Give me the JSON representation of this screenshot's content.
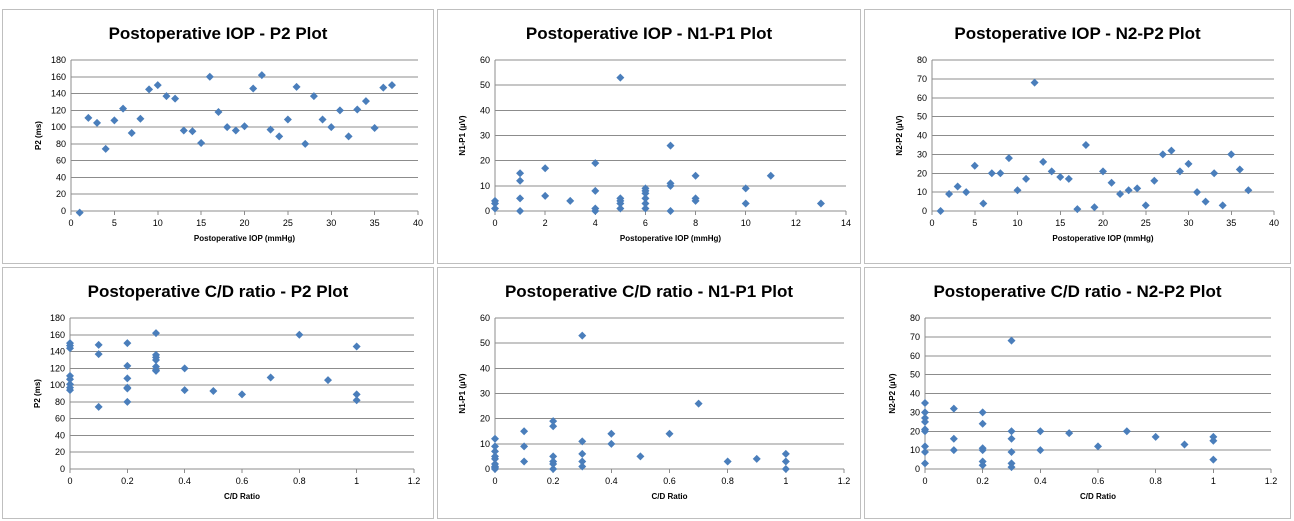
{
  "marker_color": "#4a7ebb",
  "grid_color": "#8c8c8c",
  "chart_data": [
    {
      "type": "scatter",
      "title": "Postoperative IOP - P2 Plot",
      "xlabel": "Postoperative IOP (mmHg)",
      "ylabel": "P2 (ms)",
      "xlim": [
        0,
        40
      ],
      "ylim": [
        0,
        180
      ],
      "xticks": [
        0,
        5,
        10,
        15,
        20,
        25,
        30,
        35,
        40
      ],
      "yticks": [
        0,
        20,
        40,
        60,
        80,
        100,
        120,
        140,
        160,
        180
      ],
      "grid": true,
      "legend": "none",
      "x": [
        1,
        2,
        3,
        4,
        5,
        6,
        7,
        8,
        9,
        10,
        11,
        12,
        13,
        14,
        15,
        16,
        17,
        18,
        19,
        20,
        21,
        22,
        23,
        24,
        25,
        26,
        27,
        28,
        29,
        30,
        31,
        32,
        33,
        34,
        35,
        36,
        37
      ],
      "y": [
        -2,
        111,
        105,
        74,
        108,
        122,
        93,
        110,
        145,
        150,
        137,
        134,
        96,
        95,
        81,
        160,
        118,
        100,
        96,
        101,
        146,
        162,
        97,
        89,
        109,
        148,
        80,
        137,
        109,
        100,
        120,
        89,
        121,
        131,
        99,
        147,
        150
      ]
    },
    {
      "type": "scatter",
      "title": "Postoperative IOP - N1-P1 Plot",
      "xlabel": "Postoperative IOP (mmHg)",
      "ylabel": "N1-P1 (µV)",
      "xlim": [
        0,
        14
      ],
      "ylim": [
        0,
        60
      ],
      "xticks": [
        0,
        2,
        4,
        6,
        8,
        10,
        12,
        14
      ],
      "yticks": [
        0,
        10,
        20,
        30,
        40,
        50,
        60
      ],
      "grid": true,
      "legend": "none",
      "x": [
        0,
        0,
        0,
        1,
        1,
        1,
        1,
        2,
        2,
        3,
        4,
        4,
        4,
        4,
        5,
        5,
        5,
        5,
        5,
        6,
        6,
        6,
        6,
        6,
        6,
        7,
        7,
        7,
        7,
        8,
        8,
        8,
        10,
        10,
        11,
        13
      ],
      "y": [
        1,
        3,
        4,
        15,
        12,
        5,
        0,
        17,
        6,
        4,
        19,
        8,
        1,
        0,
        53,
        5,
        3,
        1,
        4,
        9,
        7,
        5,
        3,
        1,
        8,
        26,
        11,
        10,
        0,
        14,
        5,
        4,
        9,
        3,
        14,
        3
      ]
    },
    {
      "type": "scatter",
      "title": "Postoperative IOP - N2-P2 Plot",
      "xlabel": "Postoperative IOP (mmHg)",
      "ylabel": "N2-P2 (µV)",
      "xlim": [
        0,
        40
      ],
      "ylim": [
        0,
        80
      ],
      "xticks": [
        0,
        5,
        10,
        15,
        20,
        25,
        30,
        35,
        40
      ],
      "yticks": [
        0,
        10,
        20,
        30,
        40,
        50,
        60,
        70,
        80
      ],
      "grid": true,
      "legend": "none",
      "x": [
        1,
        2,
        3,
        4,
        5,
        6,
        7,
        8,
        9,
        10,
        11,
        12,
        13,
        14,
        15,
        16,
        17,
        18,
        19,
        20,
        21,
        22,
        23,
        24,
        25,
        26,
        27,
        28,
        29,
        30,
        31,
        32,
        33,
        34,
        35,
        36,
        37
      ],
      "y": [
        0,
        9,
        13,
        10,
        24,
        4,
        20,
        20,
        28,
        11,
        17,
        68,
        26,
        21,
        18,
        17,
        1,
        35,
        2,
        21,
        15,
        9,
        11,
        12,
        3,
        16,
        30,
        32,
        21,
        25,
        10,
        5,
        20,
        3,
        30,
        22,
        11
      ]
    },
    {
      "type": "scatter",
      "title": "Postoperative C/D ratio - P2 Plot",
      "xlabel": "C/D Ratio",
      "ylabel": "P2 (ms)",
      "xlim": [
        0,
        1.2
      ],
      "ylim": [
        0,
        180
      ],
      "xticks": [
        0,
        0.2,
        0.4,
        0.6,
        0.8,
        1,
        1.2
      ],
      "yticks": [
        0,
        20,
        40,
        60,
        80,
        100,
        120,
        140,
        160,
        180
      ],
      "grid": true,
      "legend": "none",
      "x": [
        0,
        0,
        0,
        0,
        0,
        0,
        0,
        0,
        0.1,
        0.1,
        0.1,
        0.2,
        0.2,
        0.2,
        0.2,
        0.2,
        0.2,
        0.3,
        0.3,
        0.3,
        0.3,
        0.3,
        0.3,
        0.3,
        0.4,
        0.4,
        0.5,
        0.6,
        0.7,
        0.8,
        0.9,
        1,
        1,
        1
      ],
      "y": [
        150,
        147,
        144,
        111,
        107,
        101,
        97,
        94,
        148,
        137,
        74,
        150,
        123,
        108,
        97,
        80,
        96,
        162,
        136,
        133,
        130,
        122,
        118,
        117,
        120,
        94,
        93,
        89,
        109,
        160,
        106,
        146,
        89,
        82
      ]
    },
    {
      "type": "scatter",
      "title": "Postoperative C/D ratio - N1-P1 Plot",
      "xlabel": "C/D Ratio",
      "ylabel": "N1-P1 (µV)",
      "xlim": [
        0,
        1.2
      ],
      "ylim": [
        0,
        60
      ],
      "xticks": [
        0,
        0.2,
        0.4,
        0.6,
        0.8,
        1,
        1.2
      ],
      "yticks": [
        0,
        10,
        20,
        30,
        40,
        50,
        60
      ],
      "grid": true,
      "legend": "none",
      "x": [
        0,
        0,
        0,
        0,
        0,
        0,
        0,
        0,
        0,
        0.1,
        0.1,
        0.1,
        0.2,
        0.2,
        0.2,
        0.2,
        0.2,
        0.2,
        0.3,
        0.3,
        0.3,
        0.3,
        0.3,
        0.4,
        0.4,
        0.5,
        0.6,
        0.7,
        0.8,
        0.9,
        1,
        1,
        1
      ],
      "y": [
        12,
        9,
        7,
        5,
        4,
        2,
        1,
        0.5,
        0,
        15,
        9,
        3,
        19,
        17,
        5,
        3,
        2,
        0,
        53,
        11,
        6,
        3,
        1,
        14,
        10,
        5,
        14,
        26,
        3,
        4,
        6,
        3,
        0
      ]
    },
    {
      "type": "scatter",
      "title": "Postoperative C/D ratio - N2-P2 Plot",
      "xlabel": "C/D Ratio",
      "ylabel": "N2-P2 (µV)",
      "xlim": [
        0,
        1.2
      ],
      "ylim": [
        0,
        80
      ],
      "xticks": [
        0,
        0.2,
        0.4,
        0.6,
        0.8,
        1,
        1.2
      ],
      "yticks": [
        0,
        10,
        20,
        30,
        40,
        50,
        60,
        70,
        80
      ],
      "grid": true,
      "legend": "none",
      "x": [
        0,
        0,
        0,
        0,
        0,
        0,
        0,
        0,
        0,
        0.1,
        0.1,
        0.1,
        0.2,
        0.2,
        0.2,
        0.2,
        0.2,
        0.2,
        0.3,
        0.3,
        0.3,
        0.3,
        0.3,
        0.3,
        0.4,
        0.4,
        0.5,
        0.6,
        0.7,
        0.8,
        0.9,
        1,
        1,
        1
      ],
      "y": [
        35,
        30,
        27,
        25,
        21,
        20,
        12,
        9,
        3,
        32,
        16,
        10,
        30,
        24,
        11,
        10,
        4,
        2,
        68,
        20,
        16,
        9,
        3,
        1,
        20,
        10,
        19,
        12,
        20,
        17,
        13,
        17,
        15,
        5
      ]
    }
  ]
}
